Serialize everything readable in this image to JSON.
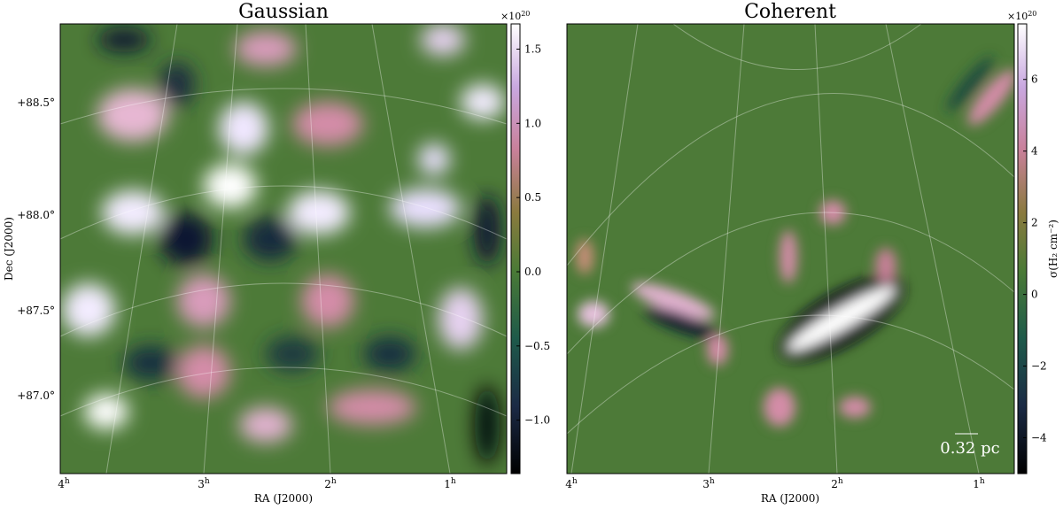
{
  "panels": [
    {
      "title": "Gaussian",
      "x_label": "RA (J2000)",
      "y_label": "Dec (J2000)",
      "ra_ticks": [
        {
          "value": "4",
          "unit": "h"
        },
        {
          "value": "3",
          "unit": "h"
        },
        {
          "value": "2",
          "unit": "h"
        },
        {
          "value": "1",
          "unit": "h"
        }
      ],
      "dec_ticks": [
        "+88.5°",
        "+88.0°",
        "+87.5°",
        "+87.0°"
      ],
      "colorbar": {
        "multiplier": {
          "base": "×10",
          "exponent": "20"
        },
        "lim": [
          -1.36,
          1.67
        ],
        "ticks": [
          {
            "value": -1.0,
            "label": "−1.0"
          },
          {
            "value": -0.5,
            "label": "−0.5"
          },
          {
            "value": 0.0,
            "label": "0.0"
          },
          {
            "value": 0.5,
            "label": "0.5"
          },
          {
            "value": 1.0,
            "label": "1.0"
          },
          {
            "value": 1.5,
            "label": "1.5"
          }
        ]
      }
    },
    {
      "title": "Coherent",
      "x_label": "RA (J2000)",
      "ra_ticks": [
        {
          "value": "4",
          "unit": "h"
        },
        {
          "value": "3",
          "unit": "h"
        },
        {
          "value": "2",
          "unit": "h"
        },
        {
          "value": "1",
          "unit": "h"
        }
      ],
      "scale_bar": "0.32 pc",
      "colorbar": {
        "multiplier": {
          "base": "×10",
          "exponent": "20"
        },
        "lim": [
          -5.0,
          7.55
        ],
        "label": "σ(H₂ cm⁻²)",
        "ticks": [
          {
            "value": -4,
            "label": "−4"
          },
          {
            "value": -2,
            "label": "−2"
          },
          0,
          2,
          4,
          6
        ]
      }
    }
  ]
}
